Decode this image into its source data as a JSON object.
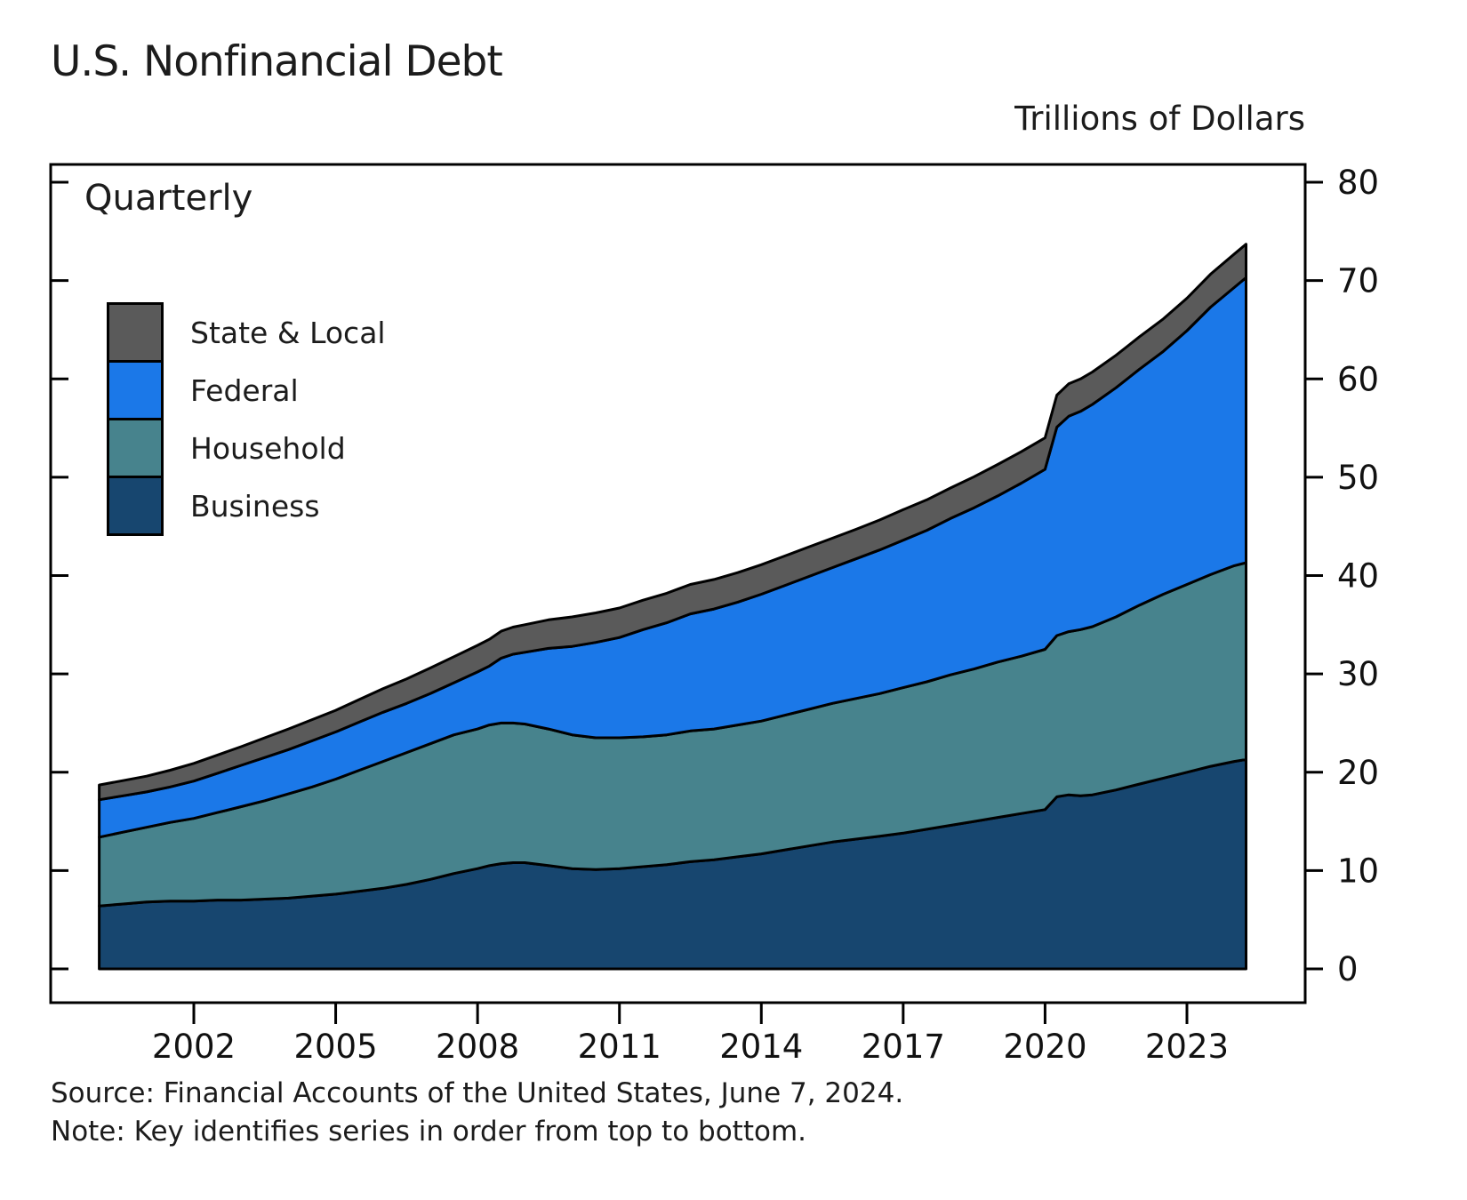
{
  "page": {
    "title": "U.S. Nonfinancial Debt",
    "units_label": "Trillions of Dollars",
    "frequency_label": "Quarterly",
    "source_line": "Source: Financial Accounts of the United States, June 7, 2024.",
    "note_line": "Note: Key identifies series in order from top to bottom."
  },
  "legend": {
    "items": [
      {
        "label": "State & Local",
        "color": "#5a5a5a"
      },
      {
        "label": "Federal",
        "color": "#1b78e8"
      },
      {
        "label": "Household",
        "color": "#47838d"
      },
      {
        "label": "Business",
        "color": "#17466f"
      }
    ]
  },
  "chart_data": {
    "type": "area",
    "stacked": true,
    "title": "U.S. Nonfinancial Debt",
    "subtitle": "Quarterly",
    "ylabel": "Trillions of Dollars",
    "ylim": [
      0,
      80
    ],
    "y_ticks": [
      0,
      10,
      20,
      30,
      40,
      50,
      60,
      70,
      80
    ],
    "x_ticks": [
      2002,
      2005,
      2008,
      2011,
      2014,
      2017,
      2020,
      2023
    ],
    "legend_position": "upper left",
    "line_color": "#000000",
    "stack_order_bottom_to_top": [
      "Business",
      "Household",
      "Federal",
      "State & Local"
    ],
    "x": [
      2000,
      2000.5,
      2001,
      2001.5,
      2002,
      2002.5,
      2003,
      2003.5,
      2004,
      2004.5,
      2005,
      2005.5,
      2006,
      2006.5,
      2007,
      2007.5,
      2008,
      2008.25,
      2008.5,
      2008.75,
      2009,
      2009.5,
      2010,
      2010.5,
      2011,
      2011.5,
      2012,
      2012.5,
      2013,
      2013.5,
      2014,
      2014.5,
      2015,
      2015.5,
      2016,
      2016.5,
      2017,
      2017.5,
      2018,
      2018.5,
      2019,
      2019.5,
      2020,
      2020.25,
      2020.5,
      2020.75,
      2021,
      2021.5,
      2022,
      2022.5,
      2023,
      2023.5,
      2024,
      2024.25
    ],
    "series": [
      {
        "name": "Business",
        "color": "#17466f",
        "values": [
          6.4,
          6.6,
          6.8,
          6.9,
          6.9,
          7.0,
          7.0,
          7.1,
          7.2,
          7.4,
          7.6,
          7.9,
          8.2,
          8.6,
          9.1,
          9.7,
          10.2,
          10.5,
          10.7,
          10.8,
          10.8,
          10.5,
          10.2,
          10.1,
          10.2,
          10.4,
          10.6,
          10.9,
          11.1,
          11.4,
          11.7,
          12.1,
          12.5,
          12.9,
          13.2,
          13.5,
          13.8,
          14.2,
          14.6,
          15.0,
          15.4,
          15.8,
          16.2,
          17.5,
          17.7,
          17.6,
          17.7,
          18.2,
          18.8,
          19.4,
          20.0,
          20.6,
          21.1,
          21.3
        ]
      },
      {
        "name": "Household",
        "color": "#47838d",
        "values": [
          7.0,
          7.3,
          7.6,
          8.0,
          8.4,
          8.9,
          9.5,
          10.0,
          10.6,
          11.1,
          11.7,
          12.3,
          12.9,
          13.4,
          13.8,
          14.1,
          14.2,
          14.3,
          14.3,
          14.2,
          14.1,
          13.9,
          13.6,
          13.4,
          13.3,
          13.2,
          13.2,
          13.3,
          13.3,
          13.4,
          13.5,
          13.7,
          13.9,
          14.1,
          14.3,
          14.5,
          14.8,
          15.0,
          15.3,
          15.5,
          15.8,
          16.0,
          16.3,
          16.4,
          16.6,
          16.9,
          17.1,
          17.6,
          18.2,
          18.7,
          19.1,
          19.5,
          19.9,
          20.0
        ]
      },
      {
        "name": "Federal",
        "color": "#1b78e8",
        "values": [
          3.8,
          3.7,
          3.6,
          3.6,
          3.8,
          4.0,
          4.2,
          4.4,
          4.5,
          4.7,
          4.8,
          4.9,
          5.0,
          5.0,
          5.1,
          5.3,
          5.8,
          6.0,
          6.6,
          7.0,
          7.3,
          8.2,
          9.0,
          9.7,
          10.2,
          10.9,
          11.4,
          11.9,
          12.2,
          12.5,
          12.9,
          13.2,
          13.5,
          13.8,
          14.2,
          14.6,
          15.0,
          15.4,
          15.9,
          16.4,
          16.9,
          17.6,
          18.3,
          21.2,
          21.9,
          22.2,
          22.6,
          23.3,
          24.0,
          24.7,
          25.8,
          27.2,
          28.3,
          29.0
        ]
      },
      {
        "name": "State & Local",
        "color": "#5a5a5a",
        "values": [
          1.5,
          1.55,
          1.6,
          1.7,
          1.8,
          1.85,
          1.9,
          2.0,
          2.1,
          2.15,
          2.2,
          2.3,
          2.4,
          2.5,
          2.6,
          2.65,
          2.7,
          2.72,
          2.74,
          2.76,
          2.8,
          2.9,
          3.0,
          3.0,
          3.0,
          3.0,
          3.0,
          3.0,
          3.0,
          3.0,
          3.0,
          3.0,
          3.0,
          3.0,
          3.0,
          3.05,
          3.1,
          3.1,
          3.1,
          3.15,
          3.2,
          3.2,
          3.2,
          3.25,
          3.3,
          3.3,
          3.3,
          3.3,
          3.3,
          3.3,
          3.3,
          3.35,
          3.4,
          3.4
        ]
      }
    ]
  }
}
